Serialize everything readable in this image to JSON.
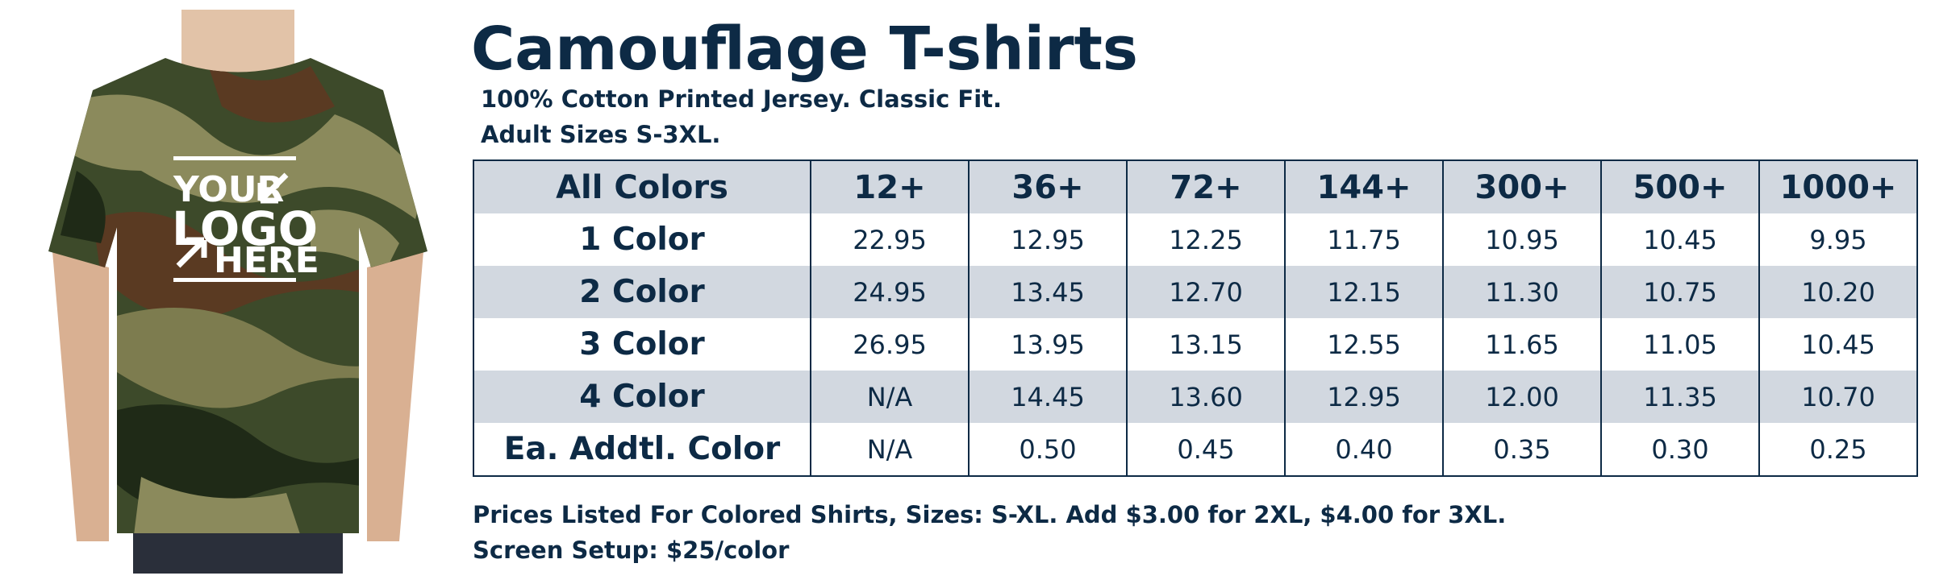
{
  "header": {
    "title": "Camouflage T-shirts",
    "lines": [
      "100% Cotton Printed Jersey.  Classic Fit.",
      "Adult Sizes S-3XL."
    ]
  },
  "image": {
    "logo": [
      "YOUR",
      "LOGO",
      "HERE"
    ]
  },
  "table": {
    "header": [
      "All Colors",
      "12+",
      "36+",
      "72+",
      "144+",
      "300+",
      "500+",
      "1000+"
    ],
    "rows": [
      [
        "1 Color",
        "22.95",
        "12.95",
        "12.25",
        "11.75",
        "10.95",
        "10.45",
        "9.95"
      ],
      [
        "2 Color",
        "24.95",
        "13.45",
        "12.70",
        "12.15",
        "11.30",
        "10.75",
        "10.20"
      ],
      [
        "3 Color",
        "26.95",
        "13.95",
        "13.15",
        "12.55",
        "11.65",
        "11.05",
        "10.45"
      ],
      [
        "4 Color",
        "N/A",
        "14.45",
        "13.60",
        "12.95",
        "12.00",
        "11.35",
        "10.70"
      ],
      [
        "Ea. Addtl. Color",
        "N/A",
        "0.50",
        "0.45",
        "0.40",
        "0.35",
        "0.30",
        "0.25"
      ]
    ]
  },
  "footer": {
    "lines": [
      "Prices Listed For Colored Shirts, Sizes: S-XL.  Add $3.00 for 2XL, $4.00 for 3XL.",
      "Screen Setup: $25/color"
    ]
  }
}
